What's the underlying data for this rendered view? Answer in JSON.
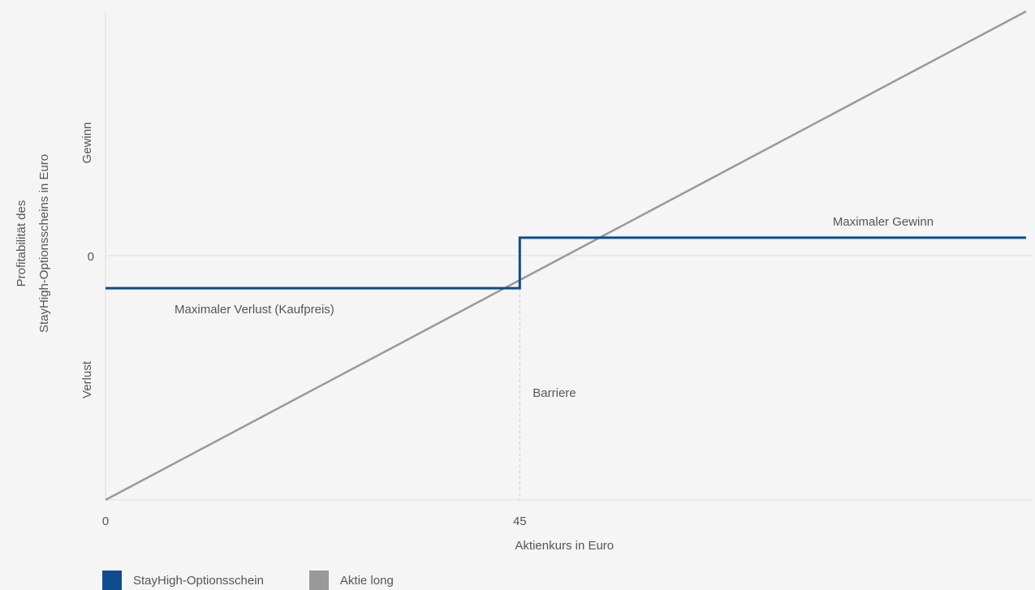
{
  "chart_data": {
    "type": "line",
    "xlabel": "Aktienkurs in Euro",
    "ylabel_lines": [
      "Profitabilität des",
      "StayHigh-Optionsscheins in Euro"
    ],
    "x_ticks": [
      {
        "label": "0",
        "value": 0
      },
      {
        "label": "45",
        "value": 45
      }
    ],
    "y_tick_zero": "0",
    "y_region_labels": {
      "upper": "Gewinn",
      "lower": "Verlust"
    },
    "xlim": [
      0,
      100
    ],
    "ylim": [
      -30,
      30
    ],
    "barrier": {
      "x": 45,
      "label": "Barriere"
    },
    "series": [
      {
        "name": "StayHigh-Optionsschein",
        "color": "#0f4c8f",
        "x": [
          0,
          45,
          45,
          100
        ],
        "y": [
          -4,
          -4,
          2.2,
          2.2
        ]
      },
      {
        "name": "Aktie long",
        "color": "#999999",
        "x": [
          0,
          100
        ],
        "y": [
          -30,
          30
        ]
      }
    ],
    "annotations": [
      {
        "text": "Maximaler Verlust (Kaufpreis)",
        "x": 7.5,
        "y": -6.6
      },
      {
        "text": "Maximaler Gewinn",
        "x": 79,
        "y": 4.2
      }
    ],
    "grid": false,
    "legend_position": "bottom-left",
    "colors": {
      "background": "#f5f5f5",
      "axis": "#dddddd",
      "zero_line": "#dddddd",
      "barrier_line": "#cccccc"
    }
  },
  "legend": [
    {
      "label": "StayHigh-Optionsschein",
      "color": "#0f4c8f"
    },
    {
      "label": "Aktie long",
      "color": "#999999"
    }
  ]
}
